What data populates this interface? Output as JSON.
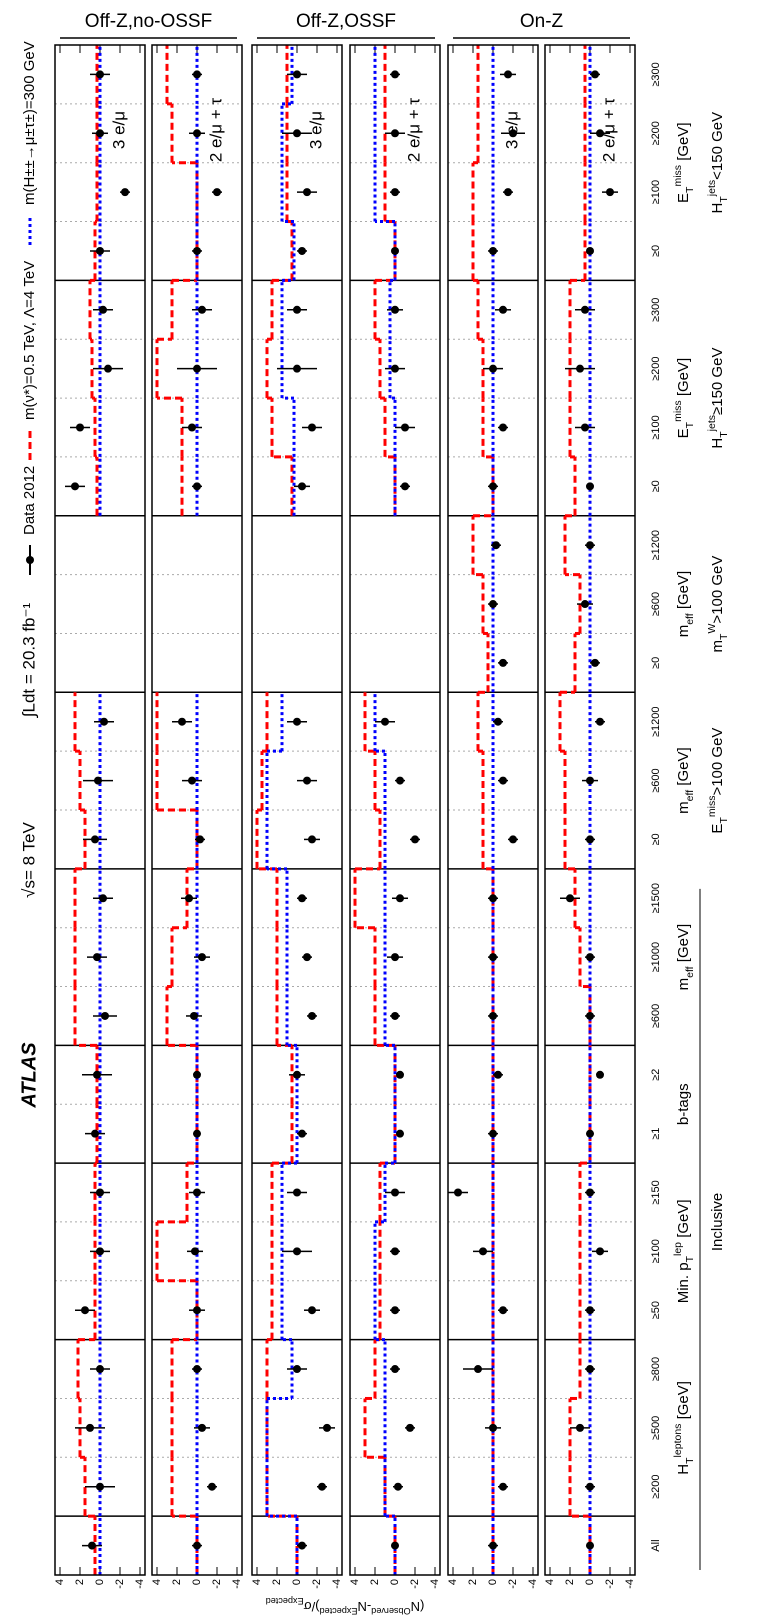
{
  "chart_data": {
    "type": "errorbar",
    "annotations": [
      "ATLAS",
      "√s= 8 TeV",
      "∫Ldt = 20.3 fb⁻¹"
    ],
    "series": [
      {
        "name": "Data 2012",
        "color": "#000000"
      },
      {
        "name": "m(ν*)=0.5 TeV, Λ=4 TeV",
        "color": "#ff0000"
      },
      {
        "name": "m(H±±→μ±τ±)=300 GeV",
        "color": "#0000ff"
      }
    ],
    "ylabel": [
      {
        "text": "(N"
      },
      {
        "sup": "Observed"
      },
      {
        "text": "-N"
      },
      {
        "sup": "Expected"
      },
      {
        "text": ")/σ"
      },
      {
        "sub": "Expected"
      }
    ],
    "ylim": [
      -4.5,
      4.5
    ],
    "yticks": [
      4,
      2,
      0,
      -2,
      -4
    ],
    "sections": [
      {
        "label": [
          {
            "text": "Inclusive"
          }
        ],
        "groups": [
          {
            "categories": [
              "All"
            ]
          },
          {
            "label": [
              {
                "text": "H"
              },
              {
                "sub": "T"
              },
              {
                "sup": "leptons"
              },
              {
                "text": " [GeV]"
              }
            ],
            "categories": [
              "≥200",
              "≥500",
              "≥800"
            ]
          },
          {
            "label": [
              {
                "text": "Min. p"
              },
              {
                "sub": "T"
              },
              {
                "sup": "lep"
              },
              {
                "text": " [GeV]"
              }
            ],
            "categories": [
              "≥50",
              "≥100",
              "≥150"
            ]
          },
          {
            "label": [
              {
                "text": "b-tags"
              }
            ],
            "categories": [
              "≥1",
              "≥2"
            ]
          },
          {
            "label": [
              {
                "text": "m"
              },
              {
                "sub": "eff"
              },
              {
                "text": " [GeV]"
              }
            ],
            "categories": [
              "≥600",
              "≥1000",
              "≥1500"
            ]
          }
        ]
      },
      {
        "label": [
          {
            "text": "E"
          },
          {
            "sub": "T"
          },
          {
            "sup": "miss"
          },
          {
            "text": ">100 GeV"
          }
        ],
        "groups": [
          {
            "label": [
              {
                "text": "m"
              },
              {
                "sub": "eff"
              },
              {
                "text": " [GeV]"
              }
            ],
            "categories": [
              "≥0",
              "≥600",
              "≥1200"
            ]
          }
        ]
      },
      {
        "label": [
          {
            "text": "m"
          },
          {
            "sub": "T"
          },
          {
            "sup": "W"
          },
          {
            "text": ">100 GeV"
          }
        ],
        "groups": [
          {
            "label": [
              {
                "text": "m"
              },
              {
                "sub": "eff"
              },
              {
                "text": " [GeV]"
              }
            ],
            "categories": [
              "≥0",
              "≥600",
              "≥1200"
            ]
          }
        ]
      },
      {
        "label": [
          {
            "text": "H"
          },
          {
            "sub": "T"
          },
          {
            "sup": "jets"
          },
          {
            "text": "≥150 GeV"
          }
        ],
        "groups": [
          {
            "label": [
              {
                "text": "E"
              },
              {
                "sub": "T"
              },
              {
                "sup": "miss"
              },
              {
                "text": " [GeV]"
              }
            ],
            "categories": [
              "≥0",
              "≥100",
              "≥200",
              "≥300"
            ]
          }
        ]
      },
      {
        "label": [
          {
            "text": "H"
          },
          {
            "sub": "T"
          },
          {
            "sup": "jets"
          },
          {
            "text": "<150 GeV"
          }
        ],
        "groups": [
          {
            "label": [
              {
                "text": "E"
              },
              {
                "sub": "T"
              },
              {
                "sup": "miss"
              },
              {
                "text": " [GeV]"
              }
            ],
            "categories": [
              "≥0",
              "≥100",
              "≥200",
              "≥300"
            ]
          }
        ]
      }
    ],
    "regions": [
      {
        "label": "Off-Z,no-OSSF",
        "panels": [
          {
            "label": "3 e/μ",
            "values": [
              0.8,
              0,
              1,
              0,
              1.5,
              0,
              0,
              0.5,
              0.3,
              -0.5,
              0.3,
              -0.3,
              0.5,
              0.2,
              -0.4,
              null,
              null,
              null,
              2.5,
              2,
              -0.8,
              -0.3,
              0,
              -2.5,
              0,
              0
            ],
            "errors": [
              1,
              1.5,
              1.5,
              1,
              1,
              1,
              1,
              1,
              1.5,
              1.2,
              1,
              1,
              1.2,
              1.5,
              1,
              null,
              null,
              null,
              1,
              1,
              1.5,
              1,
              1,
              0.5,
              0.8,
              1
            ],
            "signals": [
              [
                0.5,
                1.5,
                2,
                2.2,
                0.5,
                0.5,
                0.5,
                0.3,
                0.3,
                2.5,
                2.5,
                2.5,
                1.5,
                2,
                2.5,
                null,
                null,
                null,
                0.3,
                0.5,
                0.8,
                1,
                0.5,
                0.3,
                0.3,
                0.3
              ],
              [
                0,
                0,
                0,
                0,
                0,
                0,
                0,
                0,
                0,
                0,
                0,
                0,
                0,
                0,
                0,
                null,
                null,
                null,
                0,
                0,
                0,
                0,
                0,
                0,
                0,
                0
              ]
            ]
          },
          {
            "label": "2 e/μ + τ",
            "values": [
              0,
              -1.5,
              -0.5,
              0,
              0,
              0.2,
              0,
              0,
              0,
              0.3,
              -0.5,
              0.8,
              -0.3,
              0.5,
              1.5,
              null,
              null,
              null,
              0,
              0.5,
              0,
              -0.5,
              0,
              -2,
              0,
              0
            ],
            "errors": [
              0.5,
              0.5,
              0.8,
              0.5,
              0.8,
              0.8,
              0.8,
              0.3,
              0.3,
              0.8,
              0.8,
              0.8,
              0.5,
              1,
              1,
              null,
              null,
              null,
              0.5,
              1,
              2,
              1,
              0.5,
              0.5,
              0.8,
              0.5
            ],
            "signals": [
              [
                0,
                2.5,
                2.5,
                2.5,
                0,
                4,
                1,
                0,
                0,
                3,
                2.5,
                1,
                0,
                4,
                4,
                null,
                null,
                null,
                1.5,
                1.5,
                4,
                2.5,
                0,
                0,
                2.5,
                3
              ],
              [
                0,
                0,
                0,
                0,
                0,
                0,
                0,
                0,
                0,
                0,
                0,
                0,
                0,
                0,
                0,
                null,
                null,
                null,
                0,
                0,
                0,
                0,
                0,
                0,
                0,
                0
              ]
            ]
          }
        ]
      },
      {
        "label": "Off-Z,OSSF",
        "panels": [
          {
            "label": "3 e/μ",
            "values": [
              -0.5,
              -2.5,
              -3,
              0,
              -1.5,
              0,
              0,
              -0.5,
              0,
              -1.5,
              -1,
              -0.5,
              -1.5,
              -1,
              0,
              null,
              null,
              null,
              -0.5,
              -1.5,
              0,
              0,
              -0.5,
              -1,
              0,
              0
            ],
            "errors": [
              0.5,
              0.5,
              0.8,
              1,
              0.8,
              1.5,
              1,
              0.5,
              0.8,
              0.5,
              0.5,
              0.5,
              0.8,
              1,
              1,
              null,
              null,
              null,
              0.8,
              1,
              2,
              1,
              0.5,
              1,
              1.5,
              1
            ],
            "signals": [
              [
                0,
                3,
                3,
                3,
                2.5,
                2.5,
                2.5,
                0.5,
                0.5,
                2,
                2,
                2,
                4,
                3.5,
                3,
                null,
                null,
                null,
                0.5,
                2.5,
                3,
                2.5,
                0.5,
                1,
                1,
                1
              ],
              [
                0,
                3,
                3,
                0.5,
                1.5,
                1.5,
                1.5,
                0,
                0,
                1,
                1,
                1,
                3,
                3,
                1.5,
                null,
                null,
                null,
                0.3,
                0.3,
                1.5,
                1.5,
                0.3,
                1.5,
                1.5,
                0.5
              ]
            ]
          },
          {
            "label": "2 e/μ + τ",
            "values": [
              0,
              -0.3,
              -1.5,
              0,
              0,
              0,
              0,
              -0.5,
              -0.5,
              0,
              0,
              -0.5,
              -2,
              -0.5,
              1,
              null,
              null,
              null,
              -1,
              -1,
              0,
              0,
              0,
              0,
              0,
              0
            ],
            "errors": [
              0.3,
              0.5,
              0.5,
              0.5,
              0.5,
              0.5,
              1,
              0.3,
              0.3,
              0.5,
              0.8,
              0.8,
              0.5,
              0.5,
              1,
              null,
              null,
              null,
              0.5,
              1,
              1,
              0.8,
              0.3,
              0.5,
              1,
              0.5
            ],
            "signals": [
              [
                0,
                1,
                3,
                2,
                1.5,
                1.5,
                1.5,
                0,
                0,
                2,
                2,
                4,
                1.5,
                2,
                3,
                null,
                null,
                null,
                0,
                1,
                1.5,
                2,
                0,
                1,
                1,
                1
              ],
              [
                0,
                1,
                1,
                1,
                2,
                2,
                1,
                0,
                0,
                1,
                1,
                1,
                1,
                1,
                2,
                null,
                null,
                null,
                0,
                0,
                0.5,
                0.5,
                0,
                2,
                2,
                2
              ]
            ]
          }
        ]
      },
      {
        "label": "On-Z",
        "panels": [
          {
            "label": "3 e/μ",
            "values": [
              0,
              -1,
              0,
              1.5,
              -1,
              1,
              3.5,
              0,
              -0.5,
              0,
              0,
              0,
              -2,
              -1,
              -0.5,
              -1,
              0,
              -0.3,
              0,
              -1,
              0,
              -1,
              0,
              -1.5,
              -2,
              -1.5
            ],
            "errors": [
              0.5,
              0.5,
              0.8,
              1.5,
              0.5,
              1,
              1,
              0.5,
              0.5,
              0.5,
              0.5,
              0.5,
              0.5,
              0.5,
              0.5,
              0.5,
              0.5,
              0.5,
              0.5,
              0.5,
              1,
              0.8,
              0.5,
              0.5,
              1.2,
              0.8
            ],
            "signals": [
              [
                0,
                0,
                0,
                0,
                0,
                0,
                0,
                0,
                0,
                0,
                0,
                0,
                1,
                1,
                1.5,
                0.5,
                1,
                2,
                0,
                1,
                1,
                1.5,
                2,
                2,
                1.5,
                1.5
              ],
              [
                0,
                0,
                0,
                0,
                0,
                0,
                0,
                0,
                0,
                0,
                0,
                0,
                0,
                0,
                0,
                0,
                0,
                0,
                0,
                0,
                0,
                0,
                0,
                0,
                0,
                0
              ]
            ]
          },
          {
            "label": "2 e/μ + τ",
            "values": [
              0,
              0,
              1,
              0,
              0,
              -1,
              0,
              0,
              -1,
              0,
              0,
              2,
              0,
              0,
              -1,
              -0.5,
              0.5,
              0,
              0,
              0.5,
              1,
              0.5,
              0,
              -2,
              -1,
              -0.5
            ],
            "errors": [
              0.3,
              0.5,
              1,
              0.5,
              0.5,
              0.8,
              0.5,
              0.3,
              0.3,
              0.5,
              0.5,
              1,
              0.5,
              0.8,
              0.5,
              0.5,
              0.8,
              0.5,
              0.3,
              1,
              1.5,
              1,
              0.3,
              0.8,
              1,
              0.5
            ],
            "signals": [
              [
                0,
                2,
                2,
                1,
                1,
                1,
                1,
                0,
                0,
                0,
                1,
                1.5,
                2.5,
                2.5,
                3,
                1.5,
                1,
                2.5,
                1.5,
                2,
                2,
                2,
                0.5,
                0.5,
                0.5,
                0.5
              ],
              [
                0,
                0,
                0,
                0,
                0,
                0,
                0,
                0,
                0,
                0,
                0,
                0,
                0,
                0,
                0,
                0,
                0,
                0,
                0,
                0,
                0,
                0,
                0,
                0,
                0,
                0
              ]
            ]
          }
        ]
      }
    ]
  }
}
